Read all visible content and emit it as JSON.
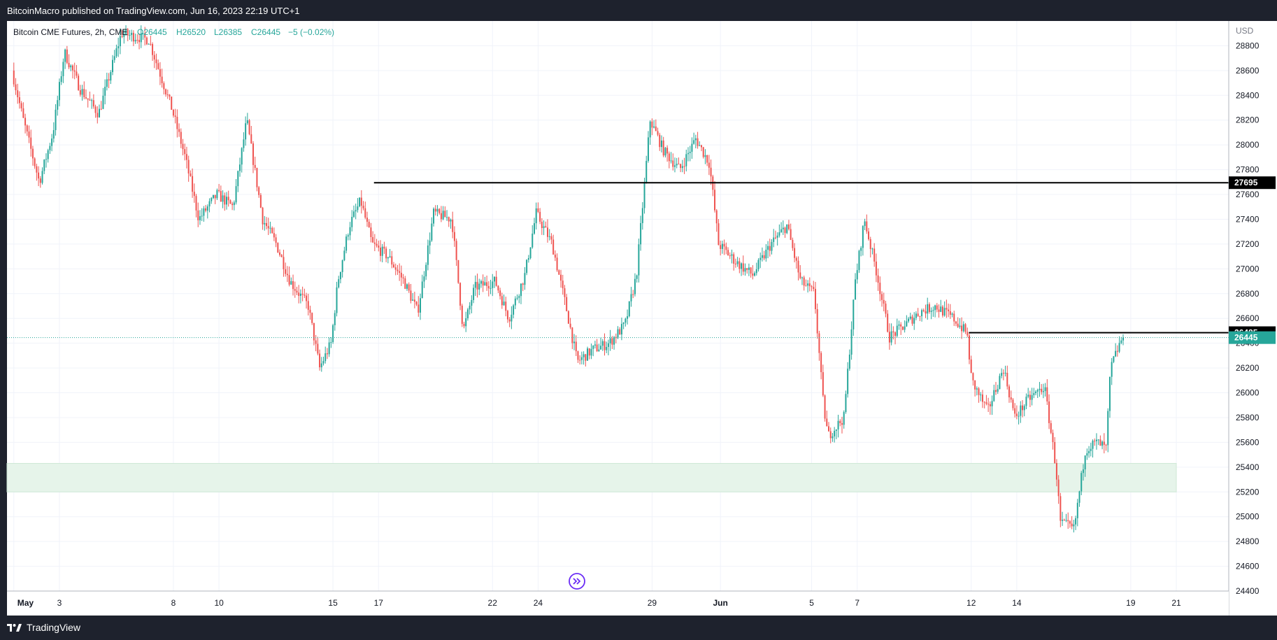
{
  "header": {
    "published": "BitcoinMacro published on TradingView.com, Jun 16, 2023 22:19 UTC+1"
  },
  "footer": {
    "brand": "TradingView"
  },
  "colors": {
    "up": "#26a69a",
    "down": "#ef5350",
    "zone": "#e6f4ea",
    "line": "#000000",
    "last_price_tag": "#26a69a"
  },
  "icons": {
    "replay": "replay-icon",
    "brand": "tradingview-logo-icon"
  },
  "chart_data": {
    "type": "candlestick",
    "symbol_legend": "Bitcoin CME Futures, 2h, CME",
    "ohlc_legend": {
      "O": "O26445",
      "H": "H26520",
      "L": "L26385",
      "C": "C26445",
      "change": "−5 (−0.02%)"
    },
    "currency": "USD",
    "ylim": [
      24400,
      29000
    ],
    "y_ticks": [
      24400,
      24600,
      24800,
      25000,
      25200,
      25400,
      25600,
      25800,
      26000,
      26200,
      26400,
      26600,
      26800,
      27000,
      27200,
      27400,
      27600,
      27800,
      28000,
      28200,
      28400,
      28600,
      28800
    ],
    "x_ticks": [
      {
        "label": "May",
        "d": 0
      },
      {
        "label": "3",
        "d": 2
      },
      {
        "label": "8",
        "d": 7
      },
      {
        "label": "10",
        "d": 9
      },
      {
        "label": "15",
        "d": 14
      },
      {
        "label": "17",
        "d": 16
      },
      {
        "label": "22",
        "d": 21
      },
      {
        "label": "24",
        "d": 23
      },
      {
        "label": "29",
        "d": 28
      },
      {
        "label": "Jun",
        "d": 31
      },
      {
        "label": "5",
        "d": 35
      },
      {
        "label": "7",
        "d": 37
      },
      {
        "label": "12",
        "d": 42
      },
      {
        "label": "14",
        "d": 44
      },
      {
        "label": "19",
        "d": 49
      },
      {
        "label": "21",
        "d": 51
      }
    ],
    "xlim_days": [
      -0.3,
      53.3
    ],
    "last_price": 26445,
    "horizontal_lines": [
      {
        "price": 27695,
        "label": "27695",
        "from_day": 15.8
      },
      {
        "price": 26485,
        "label": "26485",
        "from_day": 41.9
      }
    ],
    "support_zone": {
      "low": 25200,
      "high": 25430,
      "to_day": 51.0
    },
    "anchors": [
      {
        "d": 0.0,
        "p": 28600
      },
      {
        "d": 0.5,
        "p": 28200
      },
      {
        "d": 1.2,
        "p": 27700
      },
      {
        "d": 1.8,
        "p": 28100
      },
      {
        "d": 2.3,
        "p": 28750
      },
      {
        "d": 3.0,
        "p": 28450
      },
      {
        "d": 3.8,
        "p": 28250
      },
      {
        "d": 4.8,
        "p": 28900
      },
      {
        "d": 6.0,
        "p": 28850
      },
      {
        "d": 7.0,
        "p": 28300
      },
      {
        "d": 7.6,
        "p": 27900
      },
      {
        "d": 8.2,
        "p": 27400
      },
      {
        "d": 9.0,
        "p": 27600
      },
      {
        "d": 9.7,
        "p": 27500
      },
      {
        "d": 10.3,
        "p": 28200
      },
      {
        "d": 11.0,
        "p": 27400
      },
      {
        "d": 11.6,
        "p": 27200
      },
      {
        "d": 12.2,
        "p": 26900
      },
      {
        "d": 13.0,
        "p": 26700
      },
      {
        "d": 13.5,
        "p": 26200
      },
      {
        "d": 14.0,
        "p": 26400
      },
      {
        "d": 14.3,
        "p": 26900
      },
      {
        "d": 14.8,
        "p": 27350
      },
      {
        "d": 15.3,
        "p": 27550
      },
      {
        "d": 15.8,
        "p": 27200
      },
      {
        "d": 16.5,
        "p": 27100
      },
      {
        "d": 17.2,
        "p": 26900
      },
      {
        "d": 17.8,
        "p": 26650
      },
      {
        "d": 18.5,
        "p": 27450
      },
      {
        "d": 19.3,
        "p": 27400
      },
      {
        "d": 19.8,
        "p": 26500
      },
      {
        "d": 20.3,
        "p": 26850
      },
      {
        "d": 21.2,
        "p": 26900
      },
      {
        "d": 21.8,
        "p": 26600
      },
      {
        "d": 22.5,
        "p": 26950
      },
      {
        "d": 23.0,
        "p": 27450
      },
      {
        "d": 23.7,
        "p": 27200
      },
      {
        "d": 24.3,
        "p": 26700
      },
      {
        "d": 24.8,
        "p": 26250
      },
      {
        "d": 25.5,
        "p": 26350
      },
      {
        "d": 26.2,
        "p": 26400
      },
      {
        "d": 26.9,
        "p": 26550
      },
      {
        "d": 27.4,
        "p": 26950
      },
      {
        "d": 28.0,
        "p": 28200
      },
      {
        "d": 28.6,
        "p": 27950
      },
      {
        "d": 29.3,
        "p": 27800
      },
      {
        "d": 30.0,
        "p": 28050
      },
      {
        "d": 30.6,
        "p": 27850
      },
      {
        "d": 31.0,
        "p": 27200
      },
      {
        "d": 31.8,
        "p": 27050
      },
      {
        "d": 32.5,
        "p": 26950
      },
      {
        "d": 33.3,
        "p": 27200
      },
      {
        "d": 34.0,
        "p": 27350
      },
      {
        "d": 34.6,
        "p": 26900
      },
      {
        "d": 35.2,
        "p": 26800
      },
      {
        "d": 35.6,
        "p": 25900
      },
      {
        "d": 35.8,
        "p": 25650
      },
      {
        "d": 36.5,
        "p": 25800
      },
      {
        "d": 37.0,
        "p": 26900
      },
      {
        "d": 37.4,
        "p": 27400
      },
      {
        "d": 37.9,
        "p": 27000
      },
      {
        "d": 38.5,
        "p": 26450
      },
      {
        "d": 39.2,
        "p": 26550
      },
      {
        "d": 39.8,
        "p": 26650
      },
      {
        "d": 40.5,
        "p": 26700
      },
      {
        "d": 41.3,
        "p": 26600
      },
      {
        "d": 41.9,
        "p": 26480
      },
      {
        "d": 42.1,
        "p": 26100
      },
      {
        "d": 42.8,
        "p": 25850
      },
      {
        "d": 43.5,
        "p": 26200
      },
      {
        "d": 44.0,
        "p": 25800
      },
      {
        "d": 44.6,
        "p": 25950
      },
      {
        "d": 45.3,
        "p": 26050
      },
      {
        "d": 45.8,
        "p": 25400
      },
      {
        "d": 46.0,
        "p": 24950
      },
      {
        "d": 46.6,
        "p": 24900
      },
      {
        "d": 47.1,
        "p": 25550
      },
      {
        "d": 47.6,
        "p": 25600
      },
      {
        "d": 48.0,
        "p": 25550
      },
      {
        "d": 48.2,
        "p": 26200
      },
      {
        "d": 48.7,
        "p": 26445
      }
    ]
  }
}
